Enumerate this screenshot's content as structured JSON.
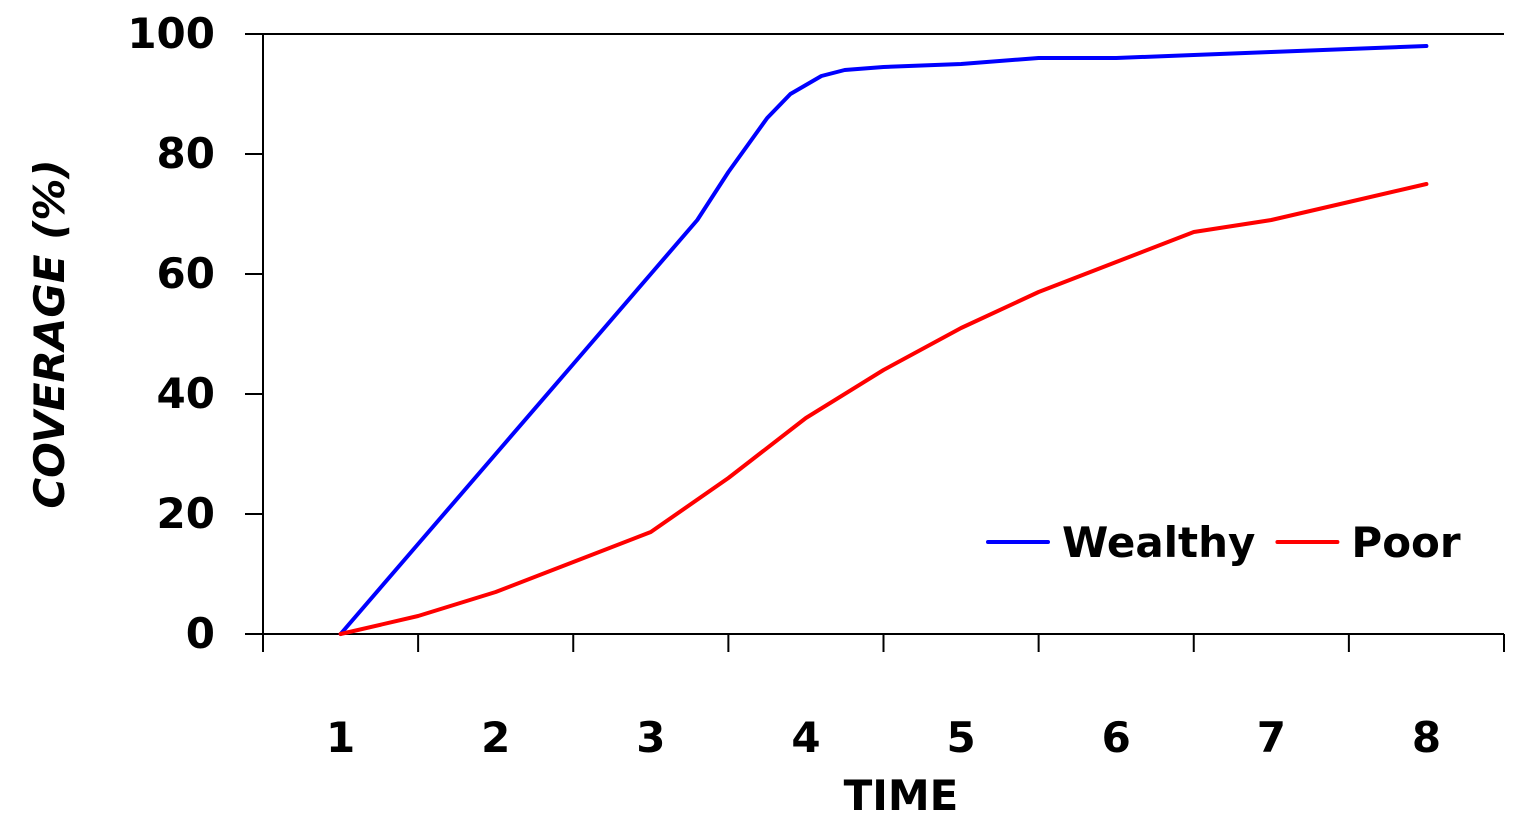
{
  "chart_data": {
    "type": "line",
    "title": "",
    "xlabel": "TIME",
    "ylabel": "COVERAGE (%)",
    "x_ticks": [
      "1",
      "2",
      "3",
      "4",
      "5",
      "6",
      "7",
      "8"
    ],
    "y_ticks": [
      "0",
      "20",
      "40",
      "60",
      "80",
      "100"
    ],
    "xlim": [
      0.5,
      8.5
    ],
    "ylim": [
      0,
      100
    ],
    "grid": false,
    "legend_position": "bottom-right",
    "series": [
      {
        "name": "Wealthy",
        "color": "#0000ff",
        "x": [
          1,
          1.5,
          2,
          2.5,
          3,
          3.3,
          3.5,
          3.75,
          3.9,
          4.1,
          4.25,
          4.5,
          5,
          5.5,
          6,
          6.5,
          7,
          7.5,
          8
        ],
        "y": [
          0,
          15,
          30,
          45,
          60,
          69,
          77,
          86,
          90,
          93,
          94,
          94.5,
          95,
          96,
          96,
          96.5,
          97,
          97.5,
          98
        ]
      },
      {
        "name": "Poor",
        "color": "#ff0000",
        "x": [
          1,
          1.5,
          2,
          2.5,
          3,
          3.5,
          4,
          4.5,
          5,
          5.5,
          6,
          6.5,
          7,
          7.5,
          8
        ],
        "y": [
          0,
          3,
          7,
          12,
          17,
          26,
          36,
          44,
          51,
          57,
          62,
          67,
          69,
          72,
          75
        ]
      }
    ]
  }
}
